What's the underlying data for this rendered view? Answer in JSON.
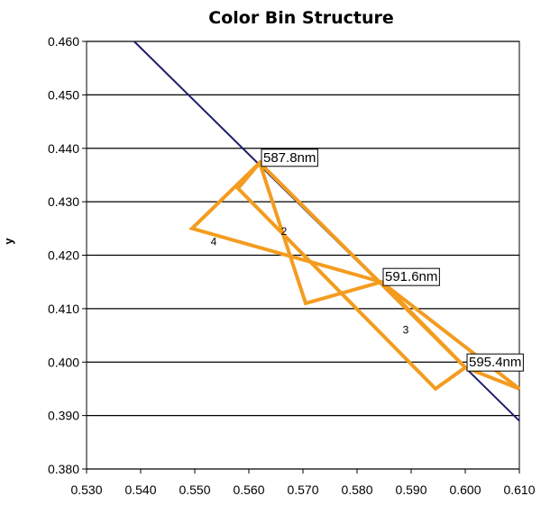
{
  "chart_data": {
    "type": "line",
    "title": "Color Bin Structure",
    "xlabel": "",
    "ylabel": "y",
    "xlim": [
      0.53,
      0.61
    ],
    "ylim": [
      0.38,
      0.46
    ],
    "x_ticks": [
      "0.530",
      "0.540",
      "0.550",
      "0.560",
      "0.570",
      "0.580",
      "0.590",
      "0.600",
      "0.610"
    ],
    "y_ticks": [
      "0.380",
      "0.390",
      "0.400",
      "0.410",
      "0.420",
      "0.430",
      "0.440",
      "0.450",
      "0.460"
    ],
    "grid": "horizontal",
    "colors": {
      "locus": "#1f1f6e",
      "bins": "#f39c1f",
      "grid": "#000000"
    },
    "locus": {
      "x": [
        0.5388,
        0.61
      ],
      "y": [
        0.46,
        0.389
      ]
    },
    "bins": [
      {
        "label": "2",
        "label_at": [
          0.5665,
          0.4245
        ],
        "x": [
          0.558,
          0.562,
          0.6,
          0.5945
        ],
        "y": [
          0.4325,
          0.4373,
          0.399,
          0.395
        ]
      },
      {
        "label": "3",
        "label_at": [
          0.589,
          0.406
        ],
        "x": [
          0.5845,
          0.6,
          0.61
        ],
        "y": [
          0.415,
          0.399,
          0.395
        ]
      },
      {
        "label": "4",
        "label_at": [
          0.5535,
          0.4225
        ],
        "x": [
          0.5495,
          0.562,
          0.5705,
          0.5845
        ],
        "y": [
          0.425,
          0.4373,
          0.411,
          0.415
        ]
      }
    ],
    "annotations": [
      {
        "text": "587.8nm",
        "x": 0.562,
        "y": 0.4373
      },
      {
        "text": "591.6nm",
        "x": 0.5845,
        "y": 0.415
      },
      {
        "text": "595.4nm",
        "x": 0.6,
        "y": 0.399
      }
    ]
  }
}
